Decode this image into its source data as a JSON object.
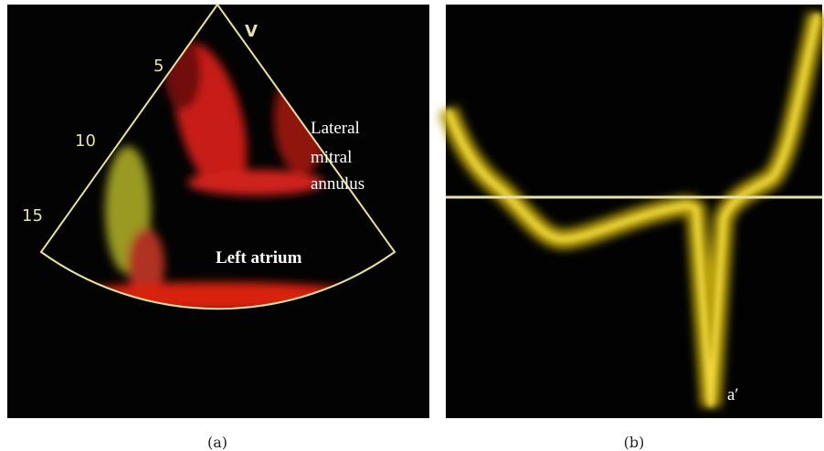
{
  "panel_a": {
    "depth_marks": [
      "V",
      "5",
      "10",
      "15"
    ],
    "annotations": [
      "Lateral",
      "mitral",
      "annulus",
      "Left atrium"
    ],
    "caption": "(a)"
  },
  "panel_b": {
    "annotations": [
      "a′"
    ],
    "caption": "(b)"
  }
}
